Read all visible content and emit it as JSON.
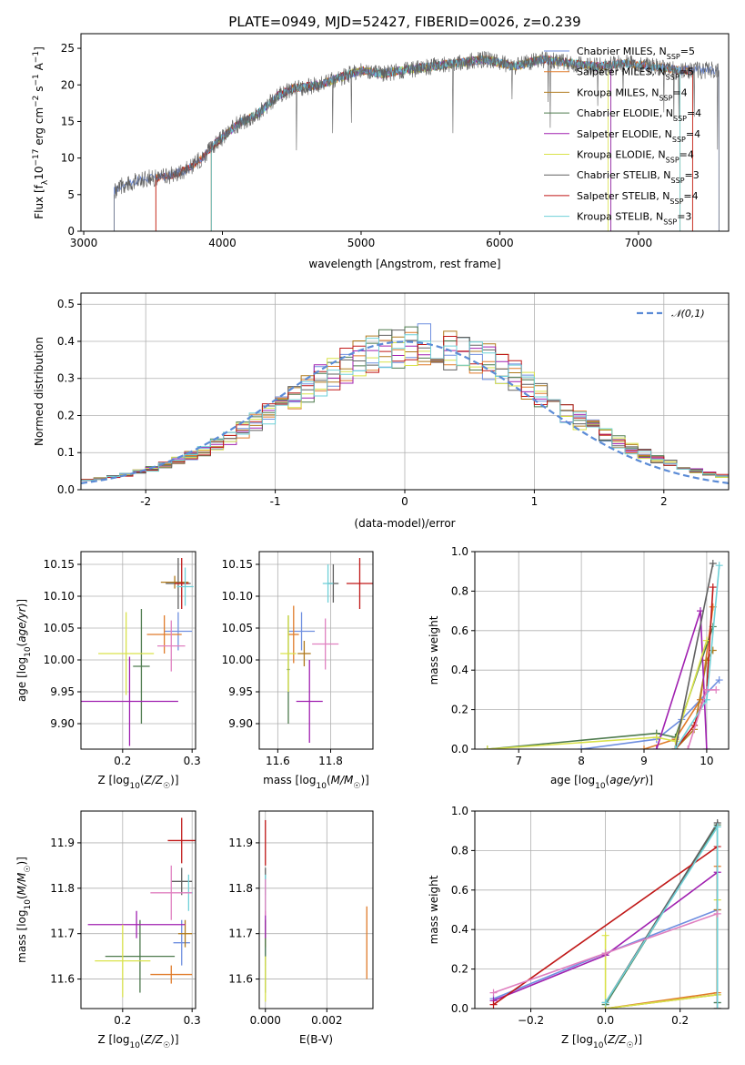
{
  "title": "PLATE=0949, MJD=52427, FIBERID=0026, z=0.239",
  "colors": [
    "#6f8fe0",
    "#e07b2a",
    "#b07a1c",
    "#4d7a4d",
    "#a020b0",
    "#d9e24a",
    "#606060",
    "#c01818",
    "#6fd0d8",
    "#e080c0"
  ],
  "chart_data": [
    {
      "type": "line",
      "panel": "spectrum",
      "xlabel": "wavelength [Angstrom, rest frame]",
      "ylabel": "Flux [f_λ 10^-17 erg cm^-2 s^-1 A^-1]",
      "xlim": [
        2980,
        7650
      ],
      "ylim": [
        0,
        27
      ],
      "xticks": [
        3000,
        4000,
        5000,
        6000,
        7000
      ],
      "yticks": [
        0,
        5,
        10,
        15,
        20,
        25
      ],
      "legend_position": "upper right",
      "legend": [
        "Chabrier MILES, N_SSP=5",
        "Salpeter MILES, N_SSP=5",
        "Kroupa MILES, N_SSP=4",
        "Chabrier ELODIE, N_SSP=4",
        "Salpeter ELODIE, N_SSP=4",
        "Kroupa ELODIE, N_SSP=4",
        "Chabrier STELIB, N_SSP=3",
        "Salpeter STELIB, N_SSP=4",
        "Kroupa STELIB, N_SSP=3"
      ],
      "envelope": {
        "x": [
          3220,
          3300,
          3450,
          3600,
          3750,
          3850,
          3950,
          4100,
          4250,
          4400,
          4500,
          4700,
          4850,
          5000,
          5150,
          5300,
          5500,
          5700,
          5900,
          6100,
          6300,
          6500,
          6700,
          6900,
          7100,
          7300
        ],
        "y": [
          5.5,
          6.5,
          7.2,
          7.5,
          8.5,
          10,
          12,
          14.5,
          16,
          18.5,
          19.5,
          20,
          21,
          22,
          21.5,
          22,
          22.5,
          23,
          23.5,
          22.5,
          23.5,
          23,
          22.5,
          23,
          22.5,
          22
        ]
      },
      "series": [
        {
          "start": 3220,
          "end": 7580
        },
        {
          "start": 3520,
          "end": 7390
        },
        {
          "start": 3920,
          "end": 7300
        },
        {
          "start": 3920,
          "end": 6800
        },
        {
          "start": 3920,
          "end": 6800
        },
        {
          "start": 3920,
          "end": 6780
        },
        {
          "start": 3220,
          "end": 7580
        },
        {
          "start": 3520,
          "end": 7390
        },
        {
          "start": 3920,
          "end": 7300
        }
      ]
    },
    {
      "type": "histogram",
      "panel": "residuals",
      "xlabel": "(data-model)/error",
      "ylabel": "Normed distribution",
      "xlim": [
        -2.5,
        2.5
      ],
      "ylim": [
        0,
        0.53
      ],
      "xticks": [
        -2,
        -1,
        0,
        1,
        2
      ],
      "yticks": [
        0.0,
        0.1,
        0.2,
        0.3,
        0.4,
        0.5
      ],
      "legend": [
        "𝒩(0,1)"
      ],
      "legend_position": "upper right",
      "bin_width": 0.1,
      "reference_curve": "normal pdf, mean 0, sigma 1"
    },
    {
      "type": "scatter",
      "panel": "Z-age",
      "xlabel": "Z [log10(Z/Z☉)]",
      "ylabel": "age [log10(age/yr)]",
      "xlim": [
        0.14,
        0.305
      ],
      "ylim": [
        9.86,
        10.17
      ],
      "xticks": [
        0.2,
        0.3
      ],
      "yticks": [
        9.9,
        9.95,
        10.0,
        10.05,
        10.1,
        10.15
      ],
      "points": [
        {
          "x": 0.28,
          "y": 10.045,
          "xerr": 0.02,
          "yerr": 0.03
        },
        {
          "x": 0.26,
          "y": 10.04,
          "xerr": 0.025,
          "yerr": 0.03
        },
        {
          "x": 0.275,
          "y": 10.122,
          "xerr": 0.02,
          "yerr": 0.01
        },
        {
          "x": 0.227,
          "y": 9.99,
          "xerr": 0.012,
          "yerr": 0.09
        },
        {
          "x": 0.21,
          "y": 9.935,
          "xerr": 0.07,
          "yerr": 0.07
        },
        {
          "x": 0.205,
          "y": 10.01,
          "xerr": 0.04,
          "yerr": 0.065
        },
        {
          "x": 0.28,
          "y": 10.12,
          "xerr": 0.018,
          "yerr": 0.04
        },
        {
          "x": 0.285,
          "y": 10.12,
          "xerr": 0.01,
          "yerr": 0.04
        },
        {
          "x": 0.29,
          "y": 10.115,
          "xerr": 0.012,
          "yerr": 0.03
        },
        {
          "x": 0.27,
          "y": 10.022,
          "xerr": 0.02,
          "yerr": 0.04
        }
      ]
    },
    {
      "type": "scatter",
      "panel": "mass-age",
      "xlabel": "mass [log10(M/M☉)]",
      "ylabel": "",
      "xlim": [
        11.53,
        11.96
      ],
      "ylim": [
        9.86,
        10.17
      ],
      "xticks": [
        11.6,
        11.8
      ],
      "yticks": [
        9.9,
        9.95,
        10.0,
        10.05,
        10.1,
        10.15
      ],
      "points": [
        {
          "x": 11.69,
          "y": 10.045,
          "xerr": 0.05,
          "yerr": 0.03
        },
        {
          "x": 11.66,
          "y": 10.04,
          "xerr": 0.02,
          "yerr": 0.045
        },
        {
          "x": 11.7,
          "y": 10.01,
          "xerr": 0.025,
          "yerr": 0.02
        },
        {
          "x": 11.64,
          "y": 9.985,
          "xerr": 0.005,
          "yerr": 0.085
        },
        {
          "x": 11.72,
          "y": 9.935,
          "xerr": 0.05,
          "yerr": 0.065
        },
        {
          "x": 11.64,
          "y": 10.01,
          "xerr": 0.03,
          "yerr": 0.06
        },
        {
          "x": 11.81,
          "y": 10.12,
          "xerr": 0.02,
          "yerr": 0.03
        },
        {
          "x": 11.91,
          "y": 10.12,
          "xerr": 0.05,
          "yerr": 0.04
        },
        {
          "x": 11.79,
          "y": 10.12,
          "xerr": 0.02,
          "yerr": 0.03
        },
        {
          "x": 11.78,
          "y": 10.025,
          "xerr": 0.05,
          "yerr": 0.04
        }
      ]
    },
    {
      "type": "line",
      "panel": "age-weight",
      "xlabel": "age [log10(age/yr)]",
      "ylabel": "mass weight",
      "xlim": [
        6.3,
        10.35
      ],
      "ylim": [
        0,
        1.0
      ],
      "xticks": [
        7,
        8,
        9,
        10
      ],
      "yticks": [
        0.0,
        0.2,
        0.4,
        0.6,
        0.8,
        1.0
      ],
      "series": [
        {
          "x": [
            8.0,
            9.2,
            9.6,
            10.2
          ],
          "y": [
            0.0,
            0.05,
            0.15,
            0.35
          ]
        },
        {
          "x": [
            9.0,
            9.5,
            9.9,
            10.1
          ],
          "y": [
            0.0,
            0.05,
            0.25,
            0.72
          ]
        },
        {
          "x": [
            9.5,
            9.8,
            10.0,
            10.1
          ],
          "y": [
            0.0,
            0.1,
            0.45,
            0.5
          ]
        },
        {
          "x": [
            6.5,
            9.2,
            9.5,
            10.1
          ],
          "y": [
            0.0,
            0.08,
            0.06,
            0.62
          ]
        },
        {
          "x": [
            9.2,
            9.9,
            10.0
          ],
          "y": [
            0.0,
            0.7,
            0.0
          ]
        },
        {
          "x": [
            6.5,
            9.2,
            9.5,
            10.0
          ],
          "y": [
            0.0,
            0.06,
            0.04,
            0.55
          ]
        },
        {
          "x": [
            9.5,
            10.1
          ],
          "y": [
            0.0,
            0.94
          ]
        },
        {
          "x": [
            9.5,
            9.8,
            10.0,
            10.1
          ],
          "y": [
            0.0,
            0.12,
            0.3,
            0.82
          ]
        },
        {
          "x": [
            9.5,
            10.0,
            10.2
          ],
          "y": [
            0.0,
            0.25,
            0.93
          ]
        },
        {
          "x": [
            9.7,
            10.0,
            10.15
          ],
          "y": [
            0.0,
            0.3,
            0.3
          ]
        }
      ]
    },
    {
      "type": "scatter",
      "panel": "Z-mass",
      "xlabel": "Z [log10(Z/Z☉)]",
      "ylabel": "mass [log10(M/M☉)]",
      "xlim": [
        0.14,
        0.305
      ],
      "ylim": [
        11.535,
        11.97
      ],
      "xticks": [
        0.2,
        0.3
      ],
      "yticks": [
        11.6,
        11.7,
        11.8,
        11.9
      ],
      "points": [
        {
          "x": 0.285,
          "y": 11.68,
          "xerr": 0.012,
          "yerr": 0.05
        },
        {
          "x": 0.27,
          "y": 11.61,
          "xerr": 0.03,
          "yerr": 0.02
        },
        {
          "x": 0.29,
          "y": 11.7,
          "xerr": 0.01,
          "yerr": 0.03
        },
        {
          "x": 0.225,
          "y": 11.65,
          "xerr": 0.05,
          "yerr": 0.08
        },
        {
          "x": 0.22,
          "y": 11.72,
          "xerr": 0.07,
          "yerr": 0.03
        },
        {
          "x": 0.2,
          "y": 11.64,
          "xerr": 0.04,
          "yerr": 0.08
        },
        {
          "x": 0.285,
          "y": 11.815,
          "xerr": 0.015,
          "yerr": 0.03
        },
        {
          "x": 0.285,
          "y": 11.905,
          "xerr": 0.02,
          "yerr": 0.05
        },
        {
          "x": 0.295,
          "y": 11.79,
          "xerr": 0.006,
          "yerr": 0.04
        },
        {
          "x": 0.27,
          "y": 11.79,
          "xerr": 0.03,
          "yerr": 0.06
        }
      ]
    },
    {
      "type": "scatter",
      "panel": "EBV-mass",
      "xlabel": "E(B-V)",
      "ylabel": "",
      "xlim": [
        -0.0002,
        0.0035
      ],
      "ylim": [
        11.535,
        11.97
      ],
      "xticks": [
        0.0,
        0.002
      ],
      "xtick_labels": [
        "0.000",
        "0.002"
      ],
      "yticks": [
        11.6,
        11.7,
        11.8,
        11.9
      ],
      "points": [
        {
          "x": 0.0,
          "y": 11.68,
          "xerr": 0,
          "yerr": 0.05
        },
        {
          "x": 0.0033,
          "y": 11.68,
          "xerr": 0,
          "yerr": 0.08
        },
        {
          "x": 0.0,
          "y": 11.7,
          "xerr": 0,
          "yerr": 0.03
        },
        {
          "x": 0.0,
          "y": 11.65,
          "xerr": 0,
          "yerr": 0.08
        },
        {
          "x": 0.0,
          "y": 11.72,
          "xerr": 0,
          "yerr": 0.03
        },
        {
          "x": 0.0,
          "y": 11.6,
          "xerr": 0,
          "yerr": 0.05
        },
        {
          "x": 0.0,
          "y": 11.815,
          "xerr": 0,
          "yerr": 0.03
        },
        {
          "x": 0.0,
          "y": 11.9,
          "xerr": 0,
          "yerr": 0.05
        },
        {
          "x": 0.0,
          "y": 11.79,
          "xerr": 0,
          "yerr": 0.04
        },
        {
          "x": 0.0,
          "y": 11.78,
          "xerr": 0,
          "yerr": 0.04
        }
      ]
    },
    {
      "type": "line",
      "panel": "Z-weight",
      "xlabel": "Z [log10(Z/Z☉)]",
      "ylabel": "mass weight",
      "xlim": [
        -0.35,
        0.33
      ],
      "ylim": [
        0,
        1.0
      ],
      "xticks": [
        -0.2,
        0.0,
        0.2
      ],
      "yticks": [
        0.0,
        0.2,
        0.4,
        0.6,
        0.8,
        1.0
      ],
      "series": [
        {
          "x": [
            -0.3,
            0.0,
            0.3,
            0.3
          ],
          "y": [
            0.05,
            0.28,
            0.5,
            0.03
          ]
        },
        {
          "x": [
            0.0,
            0.3,
            0.3
          ],
          "y": [
            0.0,
            0.08,
            0.72
          ]
        },
        {
          "x": [
            0.0,
            0.3,
            0.3
          ],
          "y": [
            0.0,
            0.07,
            0.5
          ]
        },
        {
          "x": [
            0.0,
            0.3,
            0.3
          ],
          "y": [
            0.02,
            0.93,
            0.03
          ]
        },
        {
          "x": [
            -0.3,
            0.0,
            0.3
          ],
          "y": [
            0.04,
            0.27,
            0.69
          ]
        },
        {
          "x": [
            0.0,
            0.0,
            0.3,
            0.3
          ],
          "y": [
            0.37,
            0.0,
            0.07,
            0.55
          ]
        },
        {
          "x": [
            0.0,
            0.3,
            0.3
          ],
          "y": [
            0.03,
            0.94,
            0.0
          ]
        },
        {
          "x": [
            -0.3,
            0.3,
            0.3
          ],
          "y": [
            0.02,
            0.82,
            0.0
          ]
        },
        {
          "x": [
            0.0,
            0.3,
            0.3
          ],
          "y": [
            0.03,
            0.92,
            0.0
          ]
        },
        {
          "x": [
            -0.3,
            0.0,
            0.3
          ],
          "y": [
            0.08,
            0.28,
            0.48
          ]
        }
      ]
    }
  ]
}
